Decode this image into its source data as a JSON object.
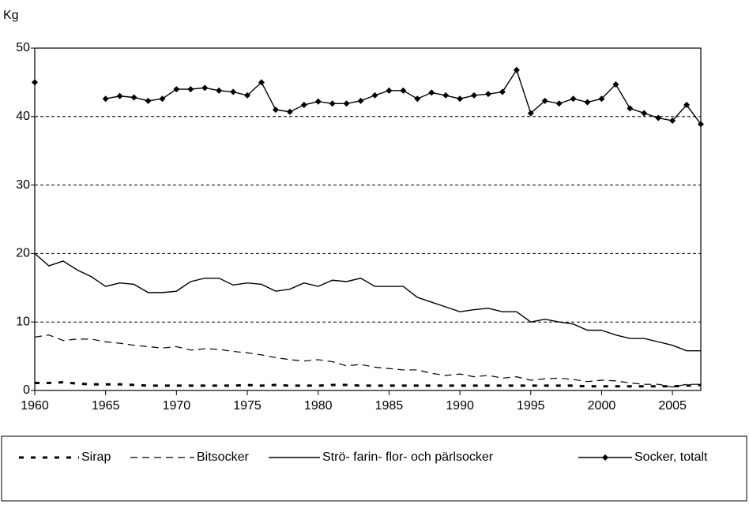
{
  "chart_data": {
    "type": "line",
    "ylabel": "Kg",
    "x": [
      1960,
      1961,
      1962,
      1963,
      1964,
      1965,
      1966,
      1967,
      1968,
      1969,
      1970,
      1971,
      1972,
      1973,
      1974,
      1975,
      1976,
      1977,
      1978,
      1979,
      1980,
      1981,
      1982,
      1983,
      1984,
      1985,
      1986,
      1987,
      1988,
      1989,
      1990,
      1991,
      1992,
      1993,
      1994,
      1995,
      1996,
      1997,
      1998,
      1999,
      2000,
      2001,
      2002,
      2003,
      2004,
      2005,
      2006,
      2007
    ],
    "xlim": [
      1960,
      2007
    ],
    "xticks": [
      1960,
      1965,
      1970,
      1975,
      1980,
      1985,
      1990,
      1995,
      2000,
      2005
    ],
    "ylim": [
      0,
      50
    ],
    "yticks": [
      0,
      10,
      20,
      30,
      40,
      50
    ],
    "grid": true,
    "legend": "bottom",
    "series": [
      {
        "name": "Sirap",
        "color": "#000000",
        "style": "thick-dash",
        "values": [
          1.1,
          1.1,
          1.2,
          1.0,
          0.9,
          0.9,
          0.9,
          0.8,
          0.7,
          0.7,
          0.7,
          0.7,
          0.7,
          0.7,
          0.7,
          0.8,
          0.7,
          0.8,
          0.7,
          0.7,
          0.7,
          0.8,
          0.8,
          0.7,
          0.7,
          0.7,
          0.7,
          0.7,
          0.7,
          0.7,
          0.7,
          0.7,
          0.7,
          0.7,
          0.7,
          0.7,
          0.7,
          0.7,
          0.7,
          0.6,
          0.6,
          0.6,
          0.6,
          0.6,
          0.6,
          0.6,
          0.7,
          0.8
        ]
      },
      {
        "name": "Bitsocker",
        "color": "#000000",
        "style": "dash",
        "values": [
          7.8,
          8.1,
          7.3,
          7.5,
          7.5,
          7.1,
          6.9,
          6.6,
          6.4,
          6.2,
          6.4,
          5.9,
          6.1,
          6.0,
          5.7,
          5.5,
          5.2,
          4.8,
          4.5,
          4.3,
          4.5,
          4.2,
          3.6,
          3.8,
          3.4,
          3.2,
          3.0,
          3.0,
          2.5,
          2.2,
          2.4,
          2.0,
          2.2,
          1.8,
          2.0,
          1.5,
          1.7,
          1.8,
          1.6,
          1.3,
          1.5,
          1.4,
          1.1,
          0.9,
          0.9,
          0.5,
          0.9,
          0.9
        ]
      },
      {
        "name": "Strö- farin- flor- och pärlsocker",
        "color": "#000000",
        "style": "solid",
        "values": [
          20.0,
          18.2,
          18.9,
          17.6,
          16.6,
          15.2,
          15.7,
          15.5,
          14.3,
          14.3,
          14.5,
          15.9,
          16.4,
          16.4,
          15.4,
          15.7,
          15.5,
          14.5,
          14.8,
          15.7,
          15.2,
          16.1,
          15.9,
          16.4,
          15.2,
          15.2,
          15.2,
          13.6,
          12.9,
          12.2,
          11.5,
          11.8,
          12.0,
          11.5,
          11.5,
          10.0,
          10.4,
          10.0,
          9.7,
          8.8,
          8.8,
          8.1,
          7.6,
          7.6,
          7.1,
          6.6,
          5.8,
          5.8
        ]
      },
      {
        "name": "Socker, totalt",
        "color": "#000000",
        "style": "solid-marker",
        "values": [
          45.0,
          null,
          null,
          null,
          null,
          42.6,
          43.0,
          42.8,
          42.3,
          42.6,
          44.0,
          44.0,
          44.2,
          43.8,
          43.6,
          43.1,
          45.0,
          41.0,
          40.7,
          41.7,
          42.2,
          41.9,
          41.9,
          42.3,
          43.1,
          43.8,
          43.8,
          42.6,
          43.5,
          43.1,
          42.6,
          43.1,
          43.3,
          43.6,
          46.8,
          40.5,
          42.3,
          41.9,
          42.6,
          42.1,
          42.6,
          44.7,
          41.2,
          40.5,
          39.8,
          39.4,
          41.7,
          38.9
        ]
      }
    ]
  }
}
